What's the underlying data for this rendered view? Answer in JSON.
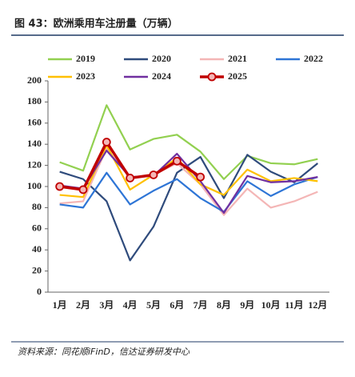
{
  "title": "图 43：欧洲乘用车注册量（万辆）",
  "source": "资料来源：同花顺iFinD，信达证券研发中心",
  "chart_data": {
    "type": "line",
    "categories": [
      "1月",
      "2月",
      "3月",
      "4月",
      "5月",
      "6月",
      "7月",
      "8月",
      "9月",
      "10月",
      "11月",
      "12月"
    ],
    "series": [
      {
        "name": "2019",
        "color": "#92d050",
        "values": [
          123,
          115,
          177,
          135,
          145,
          149,
          133,
          107,
          129,
          122,
          121,
          126
        ]
      },
      {
        "name": "2020",
        "color": "#2f4b7c",
        "values": [
          114,
          107,
          86,
          30,
          62,
          113,
          128,
          89,
          130,
          114,
          104,
          122
        ]
      },
      {
        "name": "2021",
        "color": "#f4b6b6",
        "values": [
          84,
          86,
          136,
          108,
          111,
          122,
          102,
          73,
          98,
          80,
          86,
          95
        ]
      },
      {
        "name": "2022",
        "color": "#2e75d6",
        "values": [
          83,
          80,
          113,
          83,
          96,
          107,
          89,
          76,
          105,
          91,
          102,
          109
        ]
      },
      {
        "name": "2023",
        "color": "#ffc000",
        "values": [
          92,
          90,
          139,
          97,
          111,
          127,
          102,
          92,
          116,
          105,
          108,
          105
        ]
      },
      {
        "name": "2024",
        "color": "#7030a0",
        "values": [
          101,
          98,
          134,
          109,
          110,
          131,
          105,
          75,
          110,
          104,
          105,
          109
        ]
      },
      {
        "name": "2025",
        "color": "#c00000",
        "values": [
          100,
          97,
          142,
          108,
          111,
          124,
          109,
          null,
          null,
          null,
          null,
          null
        ],
        "markers": true
      }
    ],
    "ylim": [
      0,
      200
    ],
    "yticks": [
      0,
      20,
      40,
      60,
      80,
      100,
      120,
      140,
      160,
      180,
      200
    ]
  }
}
